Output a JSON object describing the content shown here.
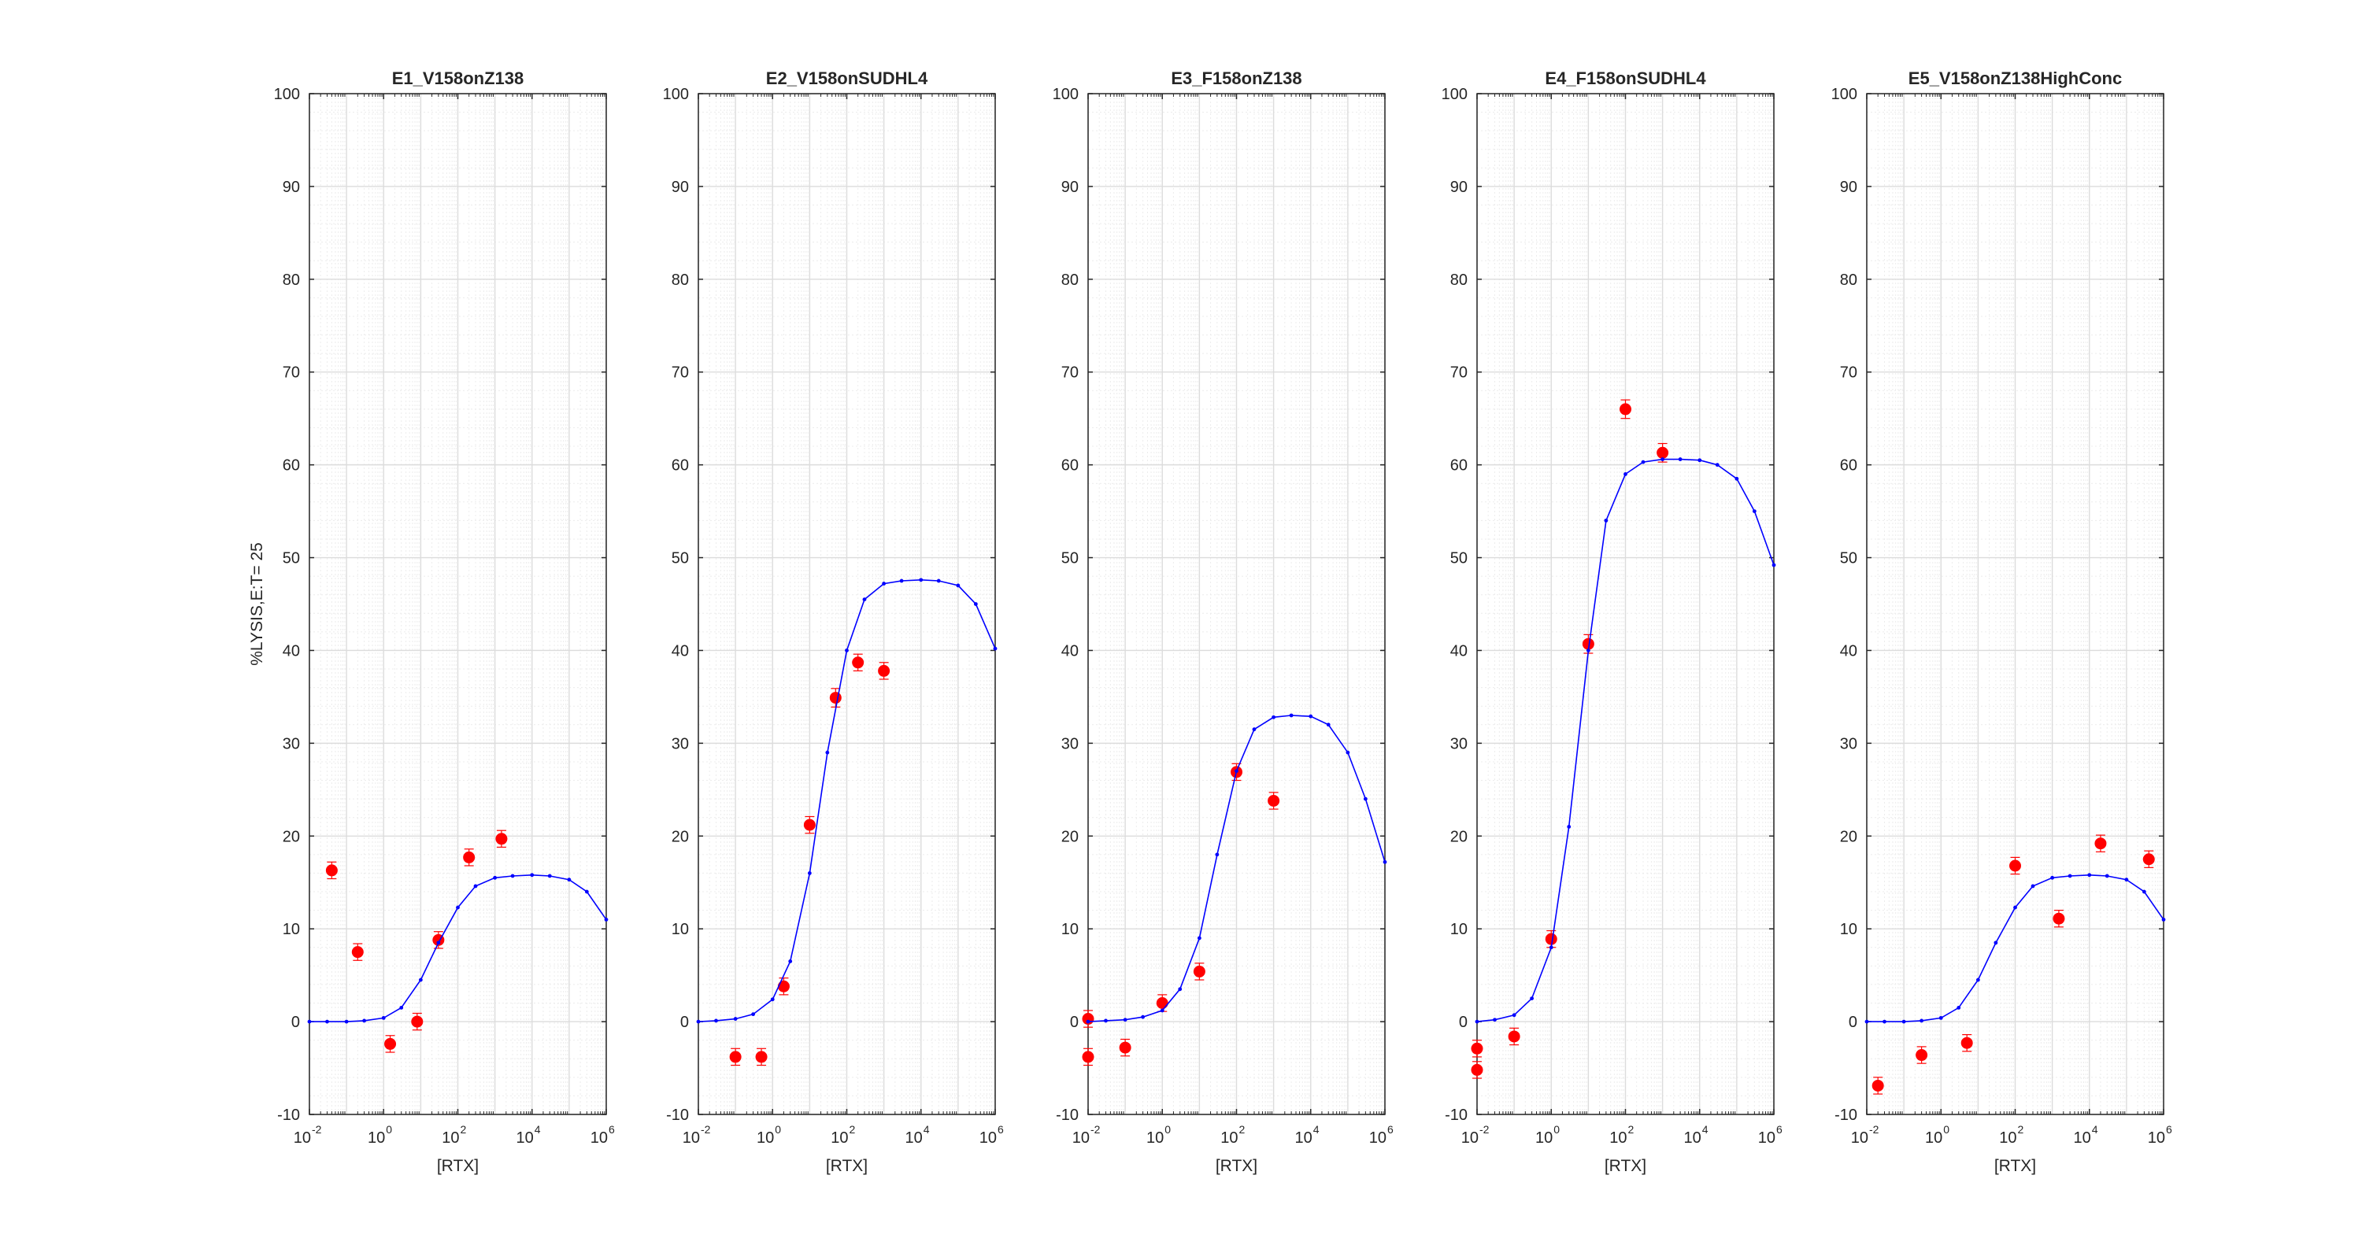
{
  "figure": {
    "ylabel": "%LYSIS,E:T= 25",
    "y_ticks": [
      "-10",
      "0",
      "10",
      "20",
      "30",
      "40",
      "50",
      "60",
      "70",
      "80",
      "90",
      "100"
    ],
    "x_ticks": [
      {
        "base": "10",
        "exp": "-2"
      },
      {
        "base": "10",
        "exp": "0"
      },
      {
        "base": "10",
        "exp": "2"
      },
      {
        "base": "10",
        "exp": "4"
      },
      {
        "base": "10",
        "exp": "6"
      }
    ],
    "colors": {
      "fit": "#0000ff",
      "points": "#ff0000",
      "axis": "#262626",
      "grid": "#dcdcdc"
    }
  },
  "chart_data": [
    {
      "type": "scatter",
      "title": "E1_V158onZ138",
      "xlabel": "[RTX]",
      "ylabel": "%LYSIS,E:T= 25",
      "xscale": "log",
      "xlim": [
        0.01,
        1000000
      ],
      "ylim": [
        -10,
        100
      ],
      "grid": true,
      "series": [
        {
          "kind": "measured",
          "x": [
            0.04,
            0.2,
            1.5,
            8,
            30,
            200,
            1500
          ],
          "y": [
            16.3,
            7.5,
            -2.4,
            0.0,
            8.8,
            17.7,
            19.7
          ],
          "err": [
            0.9,
            0.9,
            0.9,
            0.9,
            0.9,
            0.9,
            0.9
          ]
        },
        {
          "kind": "fit",
          "x": [
            0.01,
            0.03,
            0.1,
            0.3,
            1,
            3,
            10,
            30,
            100,
            300,
            1000,
            3000,
            10000,
            30000,
            100000,
            300000,
            1000000
          ],
          "y": [
            0,
            0,
            0,
            0.1,
            0.4,
            1.5,
            4.5,
            8.5,
            12.3,
            14.6,
            15.5,
            15.7,
            15.8,
            15.7,
            15.3,
            14,
            11
          ]
        }
      ]
    },
    {
      "type": "scatter",
      "title": "E2_V158onSUDHL4",
      "xlabel": "[RTX]",
      "ylabel": "",
      "xscale": "log",
      "xlim": [
        0.01,
        1000000
      ],
      "ylim": [
        -10,
        100
      ],
      "grid": true,
      "series": [
        {
          "kind": "measured",
          "x": [
            0.1,
            0.5,
            2,
            10,
            50,
            200,
            1000
          ],
          "y": [
            -3.8,
            -3.8,
            3.8,
            21.2,
            34.9,
            38.7,
            37.8
          ],
          "err": [
            0.9,
            0.9,
            0.9,
            0.9,
            1.0,
            0.9,
            0.9
          ]
        },
        {
          "kind": "fit",
          "x": [
            0.01,
            0.03,
            0.1,
            0.3,
            1,
            3,
            10,
            30,
            100,
            300,
            1000,
            3000,
            10000,
            30000,
            100000,
            300000,
            1000000
          ],
          "y": [
            0,
            0.1,
            0.3,
            0.8,
            2.4,
            6.5,
            16,
            29,
            40,
            45.5,
            47.2,
            47.5,
            47.6,
            47.5,
            47,
            45,
            40.2
          ]
        }
      ]
    },
    {
      "type": "scatter",
      "title": "E3_F158onZ138",
      "xlabel": "[RTX]",
      "ylabel": "",
      "xscale": "log",
      "xlim": [
        0.0001,
        1000000
      ],
      "ylim": [
        -10,
        100
      ],
      "grid": true,
      "series": [
        {
          "kind": "measured",
          "x": [
            0.001,
            0.01,
            0.1,
            1,
            10,
            100,
            1000
          ],
          "y": [
            -3.8,
            0.3,
            -2.8,
            2.0,
            5.4,
            26.9,
            23.8
          ],
          "err": [
            0.9,
            0.9,
            0.9,
            0.9,
            0.9,
            0.9,
            0.9
          ]
        },
        {
          "kind": "fit",
          "x": [
            0.01,
            0.03,
            0.1,
            0.3,
            1,
            3,
            10,
            30,
            100,
            300,
            1000,
            3000,
            10000,
            30000,
            100000,
            300000,
            1000000
          ],
          "y": [
            0,
            0.1,
            0.2,
            0.5,
            1.2,
            3.5,
            9,
            18,
            27,
            31.5,
            32.8,
            33,
            32.9,
            32,
            29,
            24,
            17.2
          ]
        }
      ]
    },
    {
      "type": "scatter",
      "title": "E4_F158onSUDHL4",
      "xlabel": "[RTX]",
      "ylabel": "",
      "xscale": "log",
      "xlim": [
        0.0001,
        1000000
      ],
      "ylim": [
        -10,
        100
      ],
      "grid": true,
      "series": [
        {
          "kind": "measured",
          "x": [
            0.001,
            0.01,
            0.1,
            1,
            10,
            100,
            1000
          ],
          "y": [
            -5.2,
            -2.9,
            -1.6,
            8.9,
            40.7,
            66.0,
            61.3
          ],
          "err": [
            0.9,
            0.9,
            0.9,
            0.9,
            1.0,
            1.0,
            1.0
          ]
        },
        {
          "kind": "fit",
          "x": [
            0.01,
            0.03,
            0.1,
            0.3,
            1,
            3,
            10,
            30,
            100,
            300,
            1000,
            3000,
            10000,
            30000,
            100000,
            300000,
            1000000
          ],
          "y": [
            0,
            0.2,
            0.7,
            2.5,
            8,
            21,
            40,
            54,
            59,
            60.3,
            60.6,
            60.6,
            60.5,
            60,
            58.5,
            55,
            49.2
          ]
        }
      ]
    },
    {
      "type": "scatter",
      "title": "E5_V158onZ138HighConc",
      "xlabel": "[RTX]",
      "ylabel": "",
      "xscale": "log",
      "xlim": [
        0.01,
        1000000
      ],
      "ylim": [
        -10,
        100
      ],
      "grid": true,
      "series": [
        {
          "kind": "measured",
          "x": [
            0.02,
            0.3,
            5,
            100,
            1500,
            20000,
            400000
          ],
          "y": [
            -6.9,
            -3.6,
            -2.3,
            16.8,
            11.1,
            19.2,
            17.5
          ],
          "err": [
            0.9,
            0.9,
            0.9,
            0.9,
            0.9,
            0.9,
            0.9
          ]
        },
        {
          "kind": "fit",
          "x": [
            0.01,
            0.03,
            0.1,
            0.3,
            1,
            3,
            10,
            30,
            100,
            300,
            1000,
            3000,
            10000,
            30000,
            100000,
            300000,
            1000000
          ],
          "y": [
            0,
            0,
            0,
            0.1,
            0.4,
            1.5,
            4.5,
            8.5,
            12.3,
            14.6,
            15.5,
            15.7,
            15.8,
            15.7,
            15.3,
            14,
            11
          ]
        }
      ]
    }
  ]
}
